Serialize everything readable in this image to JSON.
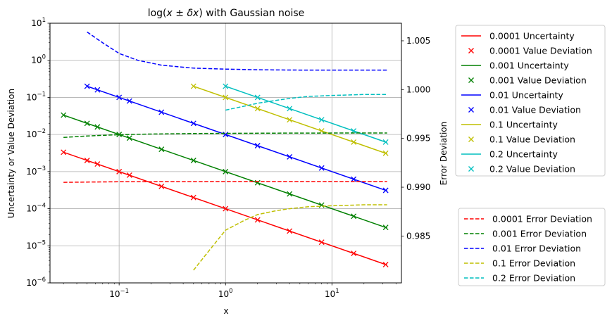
{
  "chart_data": {
    "type": "line",
    "title": "log(x ± δx) with Gaussian noise",
    "title_parts": [
      "log(",
      "x",
      " ± ",
      "δx",
      ") with Gaussian noise"
    ],
    "xlabel": "x",
    "ylabel": "Uncertainty or Value Deviation",
    "y2label": "Error Deviation",
    "x_scale": "log",
    "y_scale": "log",
    "xlim": [
      0.0224,
      45
    ],
    "ylim": [
      1e-06,
      10
    ],
    "y2lim": [
      0.9802,
      1.0068
    ],
    "grid": true,
    "legend_position": "outside-right",
    "x_ticks": [
      {
        "value": 0.1,
        "base": "10",
        "exp": "−1"
      },
      {
        "value": 1,
        "base": "10",
        "exp": "0"
      },
      {
        "value": 10,
        "base": "10",
        "exp": "1"
      }
    ],
    "y_ticks": [
      {
        "value": 1e-06,
        "base": "10",
        "exp": "−6"
      },
      {
        "value": 1e-05,
        "base": "10",
        "exp": "−5"
      },
      {
        "value": 0.0001,
        "base": "10",
        "exp": "−4"
      },
      {
        "value": 0.001,
        "base": "10",
        "exp": "−3"
      },
      {
        "value": 0.01,
        "base": "10",
        "exp": "−2"
      },
      {
        "value": 0.1,
        "base": "10",
        "exp": "−1"
      },
      {
        "value": 1,
        "base": "10",
        "exp": "0"
      },
      {
        "value": 10,
        "base": "10",
        "exp": "1"
      }
    ],
    "y2_ticks": [
      {
        "value": 0.985,
        "label": "0.985"
      },
      {
        "value": 0.99,
        "label": "0.990"
      },
      {
        "value": 0.995,
        "label": "0.995"
      },
      {
        "value": 1.0,
        "label": "1.000"
      },
      {
        "value": 1.005,
        "label": "1.005"
      }
    ],
    "series": [
      {
        "name": "0.0001 Uncertainty",
        "kind": "line",
        "axis": "left",
        "color": "#ff0000",
        "x": [
          0.03,
          33
        ],
        "y": [
          0.00333,
          3.03e-06
        ]
      },
      {
        "name": "0.0001 Value Deviation",
        "kind": "marker",
        "axis": "left",
        "color": "#ff0000",
        "x": [
          0.03,
          0.05,
          0.0625,
          0.1,
          0.125,
          0.25,
          0.5,
          1,
          2,
          4,
          8,
          16,
          32
        ],
        "y": [
          0.00333,
          0.002,
          0.0016,
          0.001,
          0.0008,
          0.0004,
          0.0002,
          0.0001,
          5e-05,
          2.5e-05,
          1.25e-05,
          6.25e-06,
          3.125e-06
        ]
      },
      {
        "name": "0.001 Uncertainty",
        "kind": "line",
        "axis": "left",
        "color": "#008000",
        "x": [
          0.03,
          33
        ],
        "y": [
          0.0333,
          3.03e-05
        ]
      },
      {
        "name": "0.001 Value Deviation",
        "kind": "marker",
        "axis": "left",
        "color": "#008000",
        "x": [
          0.03,
          0.05,
          0.0625,
          0.1,
          0.125,
          0.25,
          0.5,
          1,
          2,
          4,
          8,
          16,
          32
        ],
        "y": [
          0.0333,
          0.02,
          0.016,
          0.01,
          0.008,
          0.004,
          0.002,
          0.001,
          0.0005,
          0.00025,
          0.000125,
          6.25e-05,
          3.125e-05
        ]
      },
      {
        "name": "0.01 Uncertainty",
        "kind": "line",
        "axis": "left",
        "color": "#0000ff",
        "x": [
          0.05,
          33
        ],
        "y": [
          0.2,
          0.000303
        ]
      },
      {
        "name": "0.01 Value Deviation",
        "kind": "marker",
        "axis": "left",
        "color": "#0000ff",
        "x": [
          0.05,
          0.0625,
          0.1,
          0.125,
          0.25,
          0.5,
          1,
          2,
          4,
          8,
          16,
          32
        ],
        "y": [
          0.2,
          0.16,
          0.1,
          0.08,
          0.04,
          0.02,
          0.01,
          0.005,
          0.0025,
          0.00125,
          0.000625,
          0.0003125
        ]
      },
      {
        "name": "0.1 Uncertainty",
        "kind": "line",
        "axis": "left",
        "color": "#bfbf00",
        "x": [
          0.5,
          33
        ],
        "y": [
          0.2,
          0.00303
        ]
      },
      {
        "name": "0.1 Value Deviation",
        "kind": "marker",
        "axis": "left",
        "color": "#bfbf00",
        "x": [
          0.5,
          1,
          2,
          4,
          8,
          16,
          32
        ],
        "y": [
          0.2,
          0.1,
          0.05,
          0.025,
          0.0125,
          0.00625,
          0.003125
        ]
      },
      {
        "name": "0.2 Uncertainty",
        "kind": "line",
        "axis": "left",
        "color": "#00bfbf",
        "x": [
          1,
          33
        ],
        "y": [
          0.2,
          0.00606
        ]
      },
      {
        "name": "0.2 Value Deviation",
        "kind": "marker",
        "axis": "left",
        "color": "#00bfbf",
        "x": [
          1,
          2,
          4,
          8,
          16,
          32
        ],
        "y": [
          0.2,
          0.1,
          0.05,
          0.025,
          0.0125,
          0.00625
        ]
      },
      {
        "name": "0.0001 Error Deviation",
        "kind": "dashed",
        "axis": "right",
        "color": "#ff0000",
        "x": [
          0.03,
          0.05,
          0.1,
          0.3,
          1,
          3,
          10,
          33
        ],
        "y": [
          0.9905,
          0.99053,
          0.99056,
          0.99057,
          0.99058,
          0.99058,
          0.99058,
          0.99058
        ]
      },
      {
        "name": "0.001 Error Deviation",
        "kind": "dashed",
        "axis": "right",
        "color": "#008000",
        "x": [
          0.03,
          0.05,
          0.1,
          0.2,
          0.5,
          1,
          3,
          10,
          33
        ],
        "y": [
          0.9951,
          0.99525,
          0.99538,
          0.99545,
          0.9955,
          0.99552,
          0.99554,
          0.99555,
          0.99555
        ]
      },
      {
        "name": "0.01 Error Deviation",
        "kind": "dashed",
        "axis": "right",
        "color": "#0000ff",
        "x": [
          0.05,
          0.07,
          0.1,
          0.15,
          0.25,
          0.5,
          1,
          2,
          5,
          10,
          33
        ],
        "y": [
          1.0059,
          1.0048,
          1.0037,
          1.003,
          1.0025,
          1.0022,
          1.0021,
          1.00203,
          1.002,
          1.002,
          1.002
        ]
      },
      {
        "name": "0.1 Error Deviation",
        "kind": "dashed",
        "axis": "right",
        "color": "#bfbf00",
        "x": [
          0.5,
          0.7,
          1,
          1.5,
          2,
          3,
          4,
          6,
          10,
          20,
          33
        ],
        "y": [
          0.9815,
          0.9835,
          0.9856,
          0.9866,
          0.9872,
          0.9876,
          0.9878,
          0.988,
          0.9881,
          0.9882,
          0.9882
        ]
      },
      {
        "name": "0.2 Error Deviation",
        "kind": "dashed",
        "axis": "right",
        "color": "#00bfbf",
        "x": [
          1,
          1.5,
          2,
          3,
          4,
          6,
          10,
          20,
          33
        ],
        "y": [
          0.9979,
          0.9983,
          0.9986,
          0.9989,
          0.9991,
          0.9993,
          0.9994,
          0.9995,
          0.9995
        ]
      }
    ]
  },
  "legend_top": [
    "0.0001 Uncertainty",
    "0.0001 Value Deviation",
    "0.001 Uncertainty",
    "0.001 Value Deviation",
    "0.01 Uncertainty",
    "0.01 Value Deviation",
    "0.1 Uncertainty",
    "0.1 Value Deviation",
    "0.2 Uncertainty",
    "0.2 Value Deviation"
  ],
  "legend_bottom": [
    "0.0001 Error Deviation",
    "0.001 Error Deviation",
    "0.01 Error Deviation",
    "0.1 Error Deviation",
    "0.2 Error Deviation"
  ]
}
